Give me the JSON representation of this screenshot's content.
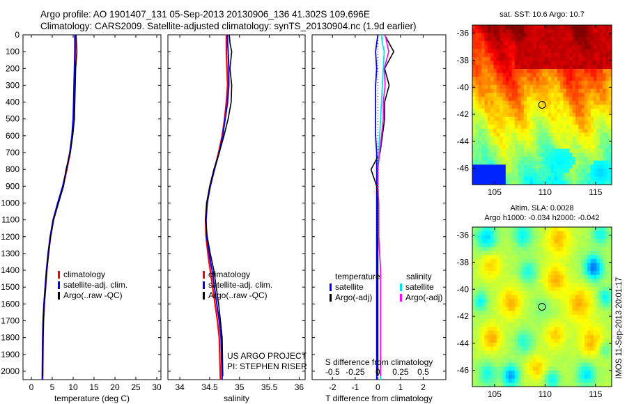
{
  "header": {
    "line1": "Argo profile: AO 1901407_131 05-Sep-2013 20130906_136 41.302S 109.696E",
    "line2": "Climatology: CARS2009. Satellite-adjusted climatology: synTS_20130904.nc (1.9d earlier)"
  },
  "credit": "IMOS 11-Sep-2013 20:01:17",
  "colors": {
    "climatology": "#ff0000",
    "satellite": "#0000ff",
    "argo": "#000000",
    "satellite_diff_salinity": "#00e5e5",
    "argo_diff_salinity": "#ff00ff"
  },
  "chart_data": [
    {
      "type": "line",
      "xlabel": "temperature (deg C)",
      "xticks": [
        "0",
        "5",
        "10",
        "15",
        "20",
        "25",
        "30"
      ],
      "xlim": [
        -2,
        31
      ],
      "yticks": [
        "0",
        "100",
        "200",
        "300",
        "400",
        "500",
        "600",
        "700",
        "800",
        "900",
        "1000",
        "1100",
        "1200",
        "1300",
        "1400",
        "1500",
        "1600",
        "1700",
        "1800",
        "1900",
        "2000"
      ],
      "ylim": [
        2050,
        0
      ],
      "legend": [
        "climatology",
        "satellite-adj. clim.",
        "Argo(..raw -QC)"
      ],
      "series": [
        {
          "name": "climatology",
          "x": [
            10.5,
            10.5,
            10.5,
            10.4,
            10.3,
            10.2,
            10.1,
            9.8,
            9.3,
            8.5,
            7.6,
            6.4,
            5.3,
            4.6,
            4.1,
            3.7,
            3.4,
            3.1,
            2.9,
            2.8,
            2.7
          ],
          "y": [
            0,
            50,
            100,
            200,
            300,
            400,
            500,
            600,
            700,
            800,
            900,
            1000,
            1100,
            1200,
            1300,
            1400,
            1500,
            1600,
            1700,
            1800,
            2050
          ]
        },
        {
          "name": "satellite-adj. clim.",
          "x": [
            10.4,
            10.4,
            10.4,
            10.3,
            10.2,
            10.1,
            10.0,
            9.7,
            9.2,
            8.4,
            7.5,
            6.3,
            5.2,
            4.5,
            4.0,
            3.6,
            3.3,
            3.0,
            2.8,
            2.7,
            2.6
          ],
          "y": [
            0,
            50,
            100,
            200,
            300,
            400,
            500,
            600,
            700,
            800,
            900,
            1000,
            1100,
            1200,
            1300,
            1400,
            1500,
            1600,
            1700,
            1800,
            2050
          ]
        },
        {
          "name": "Argo(..raw -QC)",
          "x": [
            10.7,
            10.8,
            10.9,
            10.6,
            10.5,
            10.4,
            10.3,
            9.9,
            9.3,
            8.3,
            7.7,
            6.5,
            5.3,
            4.6,
            4.1,
            3.7,
            3.4,
            3.1,
            2.9,
            2.8,
            2.7
          ],
          "y": [
            0,
            50,
            100,
            200,
            300,
            400,
            500,
            600,
            700,
            800,
            900,
            1000,
            1100,
            1200,
            1300,
            1400,
            1500,
            1600,
            1700,
            1800,
            2030
          ]
        }
      ]
    },
    {
      "type": "line",
      "xlabel": "salinity",
      "xticks": [
        "34",
        "34.5",
        "35",
        "35.5",
        "36"
      ],
      "xlim": [
        33.8,
        36.1
      ],
      "ylim": [
        2050,
        0
      ],
      "legend": [
        "climatology",
        "satellite-adj. clim.",
        "Argo(..raw -QC)"
      ],
      "annotation": [
        "US ARGO PROJECT",
        "PI: STEPHEN RISER"
      ],
      "series": [
        {
          "name": "climatology",
          "x": [
            34.78,
            34.78,
            34.78,
            34.79,
            34.8,
            34.78,
            34.75,
            34.71,
            34.65,
            34.58,
            34.51,
            34.45,
            34.43,
            34.44,
            34.47,
            34.51,
            34.55,
            34.59,
            34.63,
            34.66,
            34.68
          ],
          "y": [
            0,
            50,
            100,
            200,
            300,
            400,
            500,
            600,
            700,
            800,
            900,
            1000,
            1100,
            1200,
            1300,
            1400,
            1500,
            1600,
            1700,
            1800,
            2050
          ]
        },
        {
          "name": "satellite-adj. clim.",
          "x": [
            34.8,
            34.8,
            34.81,
            34.82,
            34.82,
            34.8,
            34.76,
            34.72,
            34.66,
            34.58,
            34.51,
            34.46,
            34.44,
            34.45,
            34.49,
            34.54,
            34.58,
            34.62,
            34.66,
            34.69,
            34.71
          ],
          "y": [
            0,
            50,
            100,
            200,
            300,
            400,
            500,
            600,
            700,
            800,
            900,
            1000,
            1100,
            1200,
            1300,
            1400,
            1500,
            1600,
            1700,
            1800,
            2050
          ]
        },
        {
          "name": "Argo(..raw -QC)",
          "x": [
            34.83,
            34.84,
            34.87,
            34.84,
            34.87,
            34.86,
            34.81,
            34.74,
            34.66,
            34.57,
            34.5,
            34.45,
            34.43,
            34.46,
            34.51,
            34.57,
            34.61,
            34.65,
            34.68,
            34.71,
            34.72
          ],
          "y": [
            0,
            50,
            100,
            200,
            300,
            400,
            500,
            600,
            700,
            800,
            900,
            1000,
            1100,
            1200,
            1300,
            1400,
            1500,
            1600,
            1700,
            1800,
            2030
          ]
        }
      ]
    },
    {
      "type": "line",
      "xlabel": "T difference from climatology",
      "xlabel_top": "S difference from climatology",
      "xticks": [
        "-2",
        "-1",
        "0",
        "1",
        "2"
      ],
      "xticks_top": [
        "-0.5",
        "-0.25",
        "0",
        "0.25",
        "0.5"
      ],
      "xlim": [
        -2.9,
        3.0
      ],
      "ylim": [
        2050,
        0
      ],
      "legend_left_title": "temperature",
      "legend_right_title": "salinity",
      "legend": [
        "satellite",
        "Argo(-adj)",
        "satellite",
        "Argo(-adj)"
      ],
      "series": [
        {
          "name": "satellite (temperature)",
          "x": [
            0.0,
            -0.05,
            -0.1,
            -0.05,
            -0.1,
            -0.1,
            -0.1,
            -0.1,
            -0.05,
            -0.05,
            -0.05,
            -0.05,
            -0.05,
            -0.05,
            -0.05,
            -0.05,
            -0.05,
            -0.05,
            -0.05,
            -0.05,
            -0.05
          ],
          "y": [
            0,
            50,
            100,
            200,
            300,
            400,
            500,
            600,
            700,
            800,
            900,
            1000,
            1100,
            1200,
            1300,
            1400,
            1500,
            1600,
            1700,
            1800,
            2050
          ]
        },
        {
          "name": "Argo(-adj) (temperature)",
          "x": [
            0.3,
            0.5,
            0.7,
            0.3,
            0.5,
            0.3,
            0.3,
            0.2,
            0.1,
            -0.3,
            -0.05,
            0.0,
            0.0,
            0.0,
            0.0,
            0.0,
            0.0,
            0.0,
            0.0,
            0.0,
            0.0
          ],
          "y": [
            0,
            50,
            100,
            200,
            300,
            400,
            500,
            600,
            700,
            800,
            900,
            1000,
            1100,
            1200,
            1300,
            1400,
            1500,
            1600,
            1700,
            1800,
            2030
          ]
        },
        {
          "name": "satellite (salinity)",
          "x": [
            0.04,
            0.05,
            0.07,
            0.06,
            0.05,
            0.04,
            0.03,
            0.02,
            0.01,
            0.0,
            0.0,
            0.01,
            0.01,
            0.01,
            0.02,
            0.03,
            0.03,
            0.03,
            0.03,
            0.03,
            0.03
          ],
          "y": [
            0,
            50,
            100,
            200,
            300,
            400,
            500,
            600,
            700,
            800,
            900,
            1000,
            1100,
            1200,
            1300,
            1400,
            1500,
            1600,
            1700,
            1800,
            2050
          ]
        },
        {
          "name": "Argo(-adj) (salinity)",
          "x": [
            0.08,
            0.1,
            0.12,
            0.07,
            0.08,
            0.06,
            0.06,
            0.04,
            0.02,
            0.0,
            0.0,
            0.01,
            0.01,
            0.01,
            0.02,
            0.03,
            0.03,
            0.03,
            0.03,
            0.03,
            0.03
          ],
          "y": [
            0,
            50,
            100,
            200,
            300,
            400,
            500,
            600,
            700,
            800,
            900,
            1000,
            1100,
            1200,
            1300,
            1400,
            1500,
            1600,
            1700,
            1800,
            2030
          ]
        }
      ]
    },
    {
      "type": "heatmap",
      "title": "sat. SST: 10.6 Argo: 10.7",
      "xticks": [
        "105",
        "110",
        "115"
      ],
      "yticks": [
        "-36",
        "-38",
        "-40",
        "-42",
        "-44",
        "-46"
      ],
      "xlim": [
        102.8,
        116.6
      ],
      "ylim": [
        -47.2,
        -35.4
      ],
      "marker": {
        "lon": 109.7,
        "lat": -41.3
      }
    },
    {
      "type": "heatmap",
      "title_lines": [
        "Altim. SLA: 0.0028",
        "Argo h1000: -0.034 h2000: -0.042"
      ],
      "xticks": [
        "105",
        "110",
        "115"
      ],
      "yticks": [
        "-36",
        "-38",
        "-40",
        "-42",
        "-44",
        "-46"
      ],
      "xlim": [
        102.8,
        116.6
      ],
      "ylim": [
        -47.2,
        -35.4
      ],
      "marker": {
        "lon": 109.7,
        "lat": -41.3
      }
    }
  ]
}
